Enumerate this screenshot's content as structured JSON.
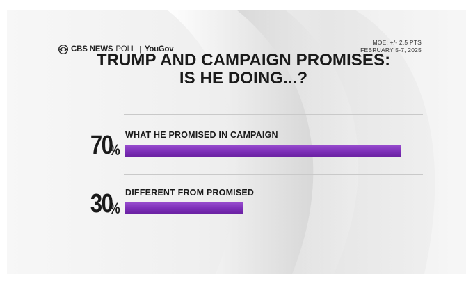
{
  "header": {
    "brand_network": "CBS NEWS",
    "brand_poll": "POLL",
    "brand_separator": "|",
    "brand_partner": "YouGov",
    "moe": "MOE: +/- 2.5 PTS",
    "dates": "FEBRUARY 5-7, 2025"
  },
  "title_line1": "TRUMP AND CAMPAIGN PROMISES:",
  "title_line2": "IS HE DOING...?",
  "colors": {
    "bar": "#7d2fb8",
    "text": "#1a1a1a"
  },
  "chart_data": {
    "type": "bar",
    "orientation": "horizontal",
    "title": "TRUMP AND CAMPAIGN PROMISES: IS HE DOING...?",
    "categories": [
      "WHAT HE PROMISED IN CAMPAIGN",
      "DIFFERENT FROM PROMISED"
    ],
    "values": [
      70,
      30
    ],
    "value_labels": [
      "70",
      "30"
    ],
    "unit": "%",
    "xlim": [
      0,
      70
    ],
    "grid": false,
    "legend": "none"
  }
}
